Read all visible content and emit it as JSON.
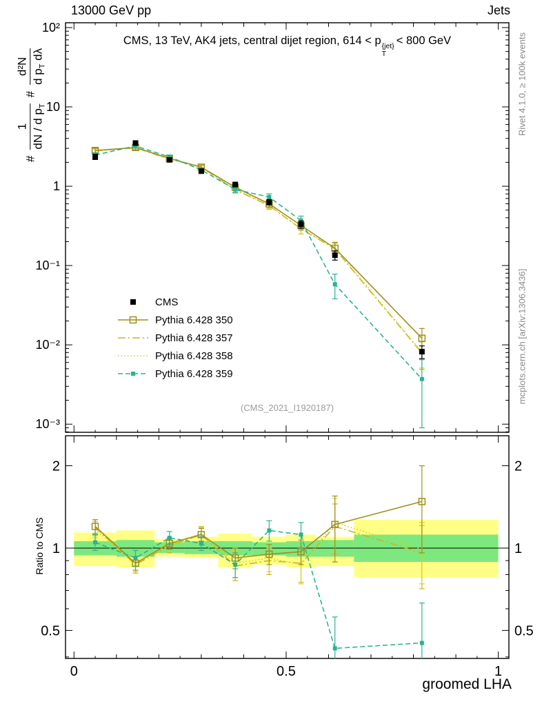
{
  "header": {
    "left": "13000 GeV pp",
    "right": "Jets"
  },
  "main_panel": {
    "title": {
      "pre": "CMS, 13 TeV, AK4 jets, central dijet region, 614 < p",
      "sup": "{jet}",
      "sub": "T",
      "post": "< 800 GeV"
    },
    "ylabel": {
      "hash1": "#",
      "num1": "1",
      "den1": "dN / d p",
      "den1_sub": "T",
      "hash2": "#",
      "num2": "d²N",
      "den2a": "d p",
      "den2_sub": "T",
      "den2b": " dλ"
    },
    "watermark": "(CMS_2021_I1920187)"
  },
  "ratio_panel": {
    "ylabel": "Ratio to CMS"
  },
  "xlabel": "groomed LHA",
  "side_notes": {
    "top": "Rivet 4.1.0, ≥ 100k events",
    "bottom": "mcplots.cern.ch [arXiv:1306.3436]"
  },
  "colors": {
    "cms": "#000000",
    "p350": "#9e8f1d",
    "p357": "#ccb41f",
    "p358": "#d8ce25",
    "p359": "#29b391",
    "band_yellow": "#ffff85",
    "band_green": "#7de87d",
    "watermark": "#9b9b9b",
    "side_text": "#8a8a8a"
  },
  "chart_data": [
    {
      "id": "spectrum",
      "type": "line",
      "title": "CMS, 13 TeV, AK4 jets, central dijet region, 614 < pT{jet} < 800 GeV",
      "xlabel": "groomed LHA",
      "ylabel": "# 1/(dN/dpT) d²N/(dpT dλ)",
      "yscale": "log",
      "grid": false,
      "legend": {
        "position": "left-middle"
      },
      "xlim": [
        -0.02,
        1.025
      ],
      "ylim": [
        0.00079,
        115
      ],
      "x": [
        0.05,
        0.145,
        0.225,
        0.3,
        0.38,
        0.46,
        0.535,
        0.615,
        0.82
      ],
      "xticks": [
        {
          "v": 0,
          "label": "0"
        },
        {
          "v": 0.5,
          "label": "0.5"
        },
        {
          "v": 1,
          "label": "1"
        }
      ],
      "yticks": [
        {
          "v": 100,
          "label": "10²"
        },
        {
          "v": 10,
          "label": "10"
        },
        {
          "v": 1,
          "label": "1"
        },
        {
          "v": 0.1,
          "label": "10⁻¹"
        },
        {
          "v": 0.01,
          "label": "10⁻²"
        },
        {
          "v": 0.001,
          "label": "10⁻³"
        }
      ],
      "series": [
        {
          "name": "CMS",
          "color": "#000000",
          "marker": "square-filled",
          "marker_size": 8,
          "line": "none",
          "values": [
            2.35,
            3.5,
            2.15,
            1.55,
            1.05,
            0.63,
            0.33,
            0.135,
            0.0082
          ],
          "yerr": [
            0.18,
            0.22,
            0.13,
            0.1,
            0.07,
            0.05,
            0.035,
            0.018,
            0.0015
          ]
        },
        {
          "name": "Pythia 6.428 350",
          "color": "#9e8f1d",
          "marker": "square-open",
          "marker_size": 9,
          "line": "solid",
          "values": [
            2.82,
            3.08,
            2.24,
            1.74,
            0.97,
            0.6,
            0.32,
            0.165,
            0.0121
          ],
          "yerr": [
            0.2,
            0.2,
            0.12,
            0.1,
            0.08,
            0.06,
            0.04,
            0.03,
            0.004
          ]
        },
        {
          "name": "Pythia 6.428 357",
          "color": "#ccb41f",
          "marker": "none",
          "marker_size": 0,
          "line": "dashdot",
          "values": [
            2.8,
            3.05,
            2.19,
            1.74,
            0.9,
            0.57,
            0.29,
            0.162,
            0.0079
          ],
          "yerr": [
            0.2,
            0.2,
            0.12,
            0.1,
            0.08,
            0.06,
            0.04,
            0.03,
            0.003
          ]
        },
        {
          "name": "Pythia 6.428 358",
          "color": "#d8ce25",
          "marker": "none",
          "marker_size": 0,
          "line": "dotted",
          "values": [
            2.75,
            3.08,
            2.21,
            1.75,
            0.92,
            0.58,
            0.29,
            0.167,
            0.0081
          ],
          "yerr": [
            0.2,
            0.2,
            0.12,
            0.1,
            0.08,
            0.06,
            0.04,
            0.03,
            0.003
          ]
        },
        {
          "name": "Pythia 6.428 359",
          "color": "#29b391",
          "marker": "square-filled",
          "marker_size": 6,
          "line": "dashed",
          "values": [
            2.47,
            3.22,
            2.34,
            1.61,
            0.91,
            0.73,
            0.37,
            0.058,
            0.0037
          ],
          "yerr": [
            0.18,
            0.2,
            0.14,
            0.1,
            0.08,
            0.07,
            0.05,
            0.02,
            0.0028
          ]
        }
      ]
    },
    {
      "id": "ratio",
      "type": "line",
      "title": "",
      "ylabel": "Ratio to CMS",
      "yscale": "log",
      "grid": false,
      "ref_line": 1,
      "ylim": [
        0.395,
        2.575
      ],
      "x": [
        0.05,
        0.145,
        0.225,
        0.3,
        0.38,
        0.46,
        0.535,
        0.615,
        0.82
      ],
      "yticks": [
        {
          "v": 2,
          "label": "2"
        },
        {
          "v": 1,
          "label": "1"
        },
        {
          "v": 0.5,
          "label": "0.5"
        }
      ],
      "yticks_minor": [
        0.4,
        0.6,
        0.7,
        0.8,
        0.9
      ],
      "bands": {
        "yellow": [
          [
            0,
            0.1,
            0.86,
            1.14
          ],
          [
            0.1,
            0.19,
            0.85,
            1.16
          ],
          [
            0.19,
            0.26,
            0.93,
            1.08
          ],
          [
            0.26,
            0.34,
            0.92,
            1.1
          ],
          [
            0.34,
            0.42,
            0.85,
            1.13
          ],
          [
            0.42,
            0.5,
            0.87,
            1.1
          ],
          [
            0.5,
            0.57,
            0.85,
            1.12
          ],
          [
            0.57,
            0.66,
            0.86,
            1.1
          ],
          [
            0.66,
            1.0,
            0.78,
            1.27
          ]
        ],
        "green": [
          [
            0,
            0.1,
            0.94,
            1.06
          ],
          [
            0.1,
            0.19,
            0.93,
            1.07
          ],
          [
            0.19,
            0.26,
            0.96,
            1.05
          ],
          [
            0.26,
            0.34,
            0.95,
            1.06
          ],
          [
            0.34,
            0.42,
            0.94,
            1.06
          ],
          [
            0.42,
            0.5,
            0.94,
            1.05
          ],
          [
            0.5,
            0.57,
            0.93,
            1.06
          ],
          [
            0.57,
            0.66,
            0.93,
            1.07
          ],
          [
            0.66,
            1.0,
            0.89,
            1.12
          ]
        ]
      },
      "series": [
        {
          "name": "Pythia 6.428 350",
          "color": "#9e8f1d",
          "marker": "square-open",
          "marker_size": 9,
          "line": "solid",
          "values": [
            1.2,
            0.88,
            1.04,
            1.12,
            0.92,
            0.95,
            0.97,
            1.22,
            1.48
          ],
          "yerr": [
            0.07,
            0.05,
            0.05,
            0.06,
            0.08,
            0.08,
            0.1,
            0.33,
            0.52
          ]
        },
        {
          "name": "Pythia 6.428 357",
          "color": "#ccb41f",
          "marker": "none",
          "marker_size": 0,
          "line": "dashdot",
          "values": [
            1.19,
            0.87,
            1.02,
            1.12,
            0.86,
            0.9,
            0.88,
            1.2,
            0.96
          ],
          "yerr": [
            0.08,
            0.06,
            0.06,
            0.07,
            0.1,
            0.1,
            0.13,
            0.25,
            0.25
          ]
        },
        {
          "name": "Pythia 6.428 358",
          "color": "#d8ce25",
          "marker": "none",
          "marker_size": 0,
          "line": "dotted",
          "values": [
            1.17,
            0.88,
            1.03,
            1.13,
            0.88,
            0.92,
            0.87,
            1.24,
            0.99
          ],
          "yerr": [
            0.08,
            0.06,
            0.06,
            0.07,
            0.1,
            0.1,
            0.13,
            0.28,
            0.25
          ]
        },
        {
          "name": "Pythia 6.428 359",
          "color": "#29b391",
          "marker": "square-filled",
          "marker_size": 6,
          "line": "dashed",
          "values": [
            1.05,
            0.92,
            1.09,
            1.04,
            0.87,
            1.16,
            1.12,
            0.43,
            0.45
          ],
          "yerr": [
            0.07,
            0.06,
            0.06,
            0.06,
            0.09,
            0.1,
            0.12,
            0.13,
            0.18
          ]
        }
      ]
    }
  ]
}
